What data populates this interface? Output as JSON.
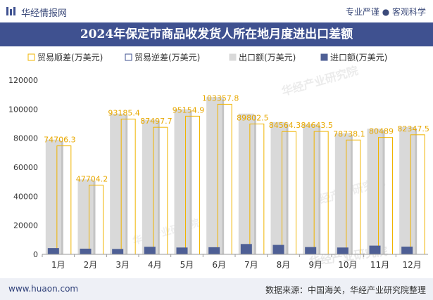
{
  "header": {
    "brand": "华经情报网",
    "slogan": "专业严谨 ● 客观科学"
  },
  "footer": {
    "site": "www.huaon.com",
    "source": "数据来源：中国海关，华经产业研究院整理"
  },
  "watermark": "华经产业研究院",
  "colors": {
    "surplus": "#f0b400",
    "deficit": "#3f5190",
    "export": "#d9d9d9",
    "import": "#4e5f95",
    "header": "#3f5190",
    "label": "#e8a800"
  },
  "chart_data": {
    "type": "bar",
    "title": "2024年保定市商品收发货人所在地月度进出口差额",
    "categories": [
      "1月",
      "2月",
      "3月",
      "4月",
      "5月",
      "6月",
      "7月",
      "8月",
      "9月",
      "10月",
      "11月",
      "12月"
    ],
    "series": [
      {
        "name": "贸易顺差(万美元)",
        "values": [
          74706.3,
          47704.2,
          93185.4,
          87497.7,
          95154.9,
          103357.8,
          89802.5,
          84564.3,
          84643.5,
          78738.1,
          80489,
          82347.5
        ]
      },
      {
        "name": "贸易逆差(万美元)",
        "values": [
          0,
          0,
          0,
          0,
          0,
          0,
          0,
          0,
          0,
          0,
          0,
          0
        ]
      },
      {
        "name": "出口额(万美元)",
        "values": [
          79000,
          51600,
          96900,
          92700,
          99900,
          108300,
          96900,
          91100,
          89700,
          83400,
          86500,
          87700
        ]
      },
      {
        "name": "进口额(万美元)",
        "values": [
          4300,
          3900,
          3700,
          5200,
          4700,
          4900,
          7100,
          6500,
          5000,
          4700,
          6000,
          5300
        ]
      }
    ],
    "data_labels": [
      "74706.3",
      "47704.2",
      "93185.4",
      "87497.7",
      "95154.9",
      "103357.8",
      "89802.5",
      "84564.3",
      "84643.5",
      "78738.1",
      "80489",
      "82347.5"
    ],
    "y_ticks": [
      "0",
      "20000",
      "40000",
      "60000",
      "80000",
      "100000",
      "120000"
    ],
    "ylim": [
      0,
      120000
    ],
    "legend_position": "top",
    "grid": false
  }
}
